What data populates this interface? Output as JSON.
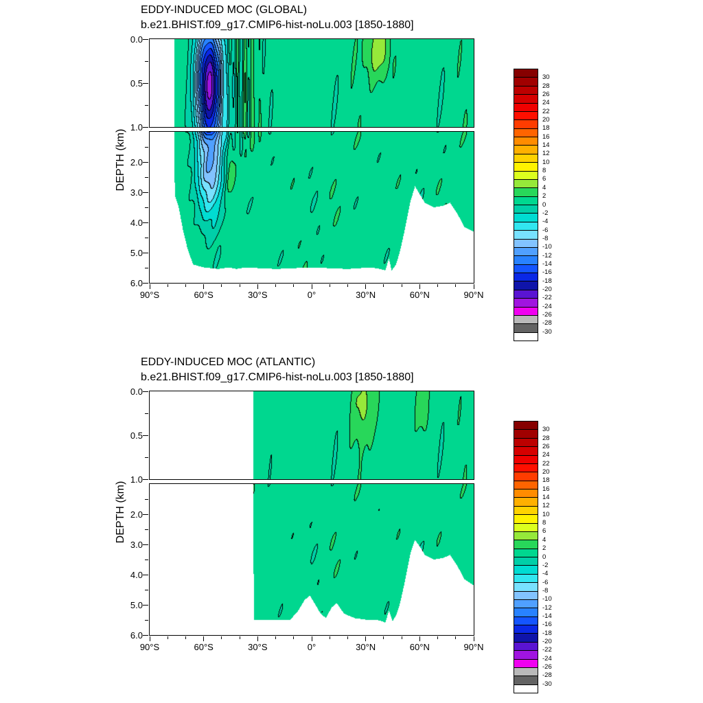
{
  "page": {
    "background_color": "#ffffff"
  },
  "colorbar": {
    "boundary_labels": [
      "30",
      "28",
      "26",
      "24",
      "22",
      "20",
      "18",
      "16",
      "14",
      "12",
      "10",
      "8",
      "6",
      "4",
      "2",
      "0",
      "-2",
      "-4",
      "-6",
      "-8",
      "-10",
      "-12",
      "-14",
      "-16",
      "-18",
      "-20",
      "-22",
      "-24",
      "-26",
      "-28",
      "-30"
    ],
    "colors_top_to_bottom": [
      "#860000",
      "#a00000",
      "#bc0000",
      "#d60000",
      "#f00000",
      "#ff0f00",
      "#ff3c00",
      "#ff6400",
      "#ff8c00",
      "#ffb000",
      "#ffd200",
      "#fff200",
      "#dcff1e",
      "#96e93a",
      "#28d75a",
      "#00d78f",
      "#00cfa8",
      "#00dcd2",
      "#32e6f0",
      "#78e1ff",
      "#82c3ff",
      "#50a0ff",
      "#2882ff",
      "#1455ff",
      "#0a28e6",
      "#0f14aa",
      "#5a14d2",
      "#a014e0",
      "#f000f0",
      "#b9b9b9",
      "#636363",
      "#ffffff"
    ]
  },
  "chart_data": [
    {
      "type": "heatmap",
      "region": "GLOBAL",
      "title": "EDDY-INDUCED MOC (GLOBAL)",
      "subtitle": "b.e21.BHIST.f09_g17.CMIP6-hist-noLu.003 [1850-1880]",
      "ylabel": "DEPTH (km)",
      "x_axis": {
        "range_deg_lat": [
          -90,
          90
        ],
        "tick_lats": [
          -90,
          -60,
          -30,
          0,
          30,
          60,
          90
        ],
        "tick_labels": [
          "90°S",
          "60°S",
          "30°S",
          "0°",
          "30°N",
          "60°N",
          "90°N"
        ]
      },
      "y_axis_split": {
        "upper_range_km": [
          0,
          1
        ],
        "lower_range_km": [
          1,
          6
        ],
        "upper_tick_depths": [
          0,
          0.5,
          1
        ],
        "upper_tick_labels": [
          "0.0",
          "0.5",
          "1.0"
        ],
        "lower_tick_depths": [
          2,
          3,
          4,
          5,
          6
        ],
        "lower_tick_labels": [
          "2.0",
          "3.0",
          "4.0",
          "5.0",
          "6.0"
        ]
      },
      "contour_levels": {
        "min": -30,
        "max": 30,
        "step": 2
      },
      "background_value": 1,
      "features": [
        {
          "name": "strong-negative-eddy-cell-60S-shallow",
          "lat": -57,
          "depth_km": 0.45,
          "amplitude": -18.2,
          "lat_sigma": 5,
          "depth_sigma": 0.45
        },
        {
          "name": "negative-eddy-cell-60S-deep",
          "lat": -56,
          "depth_km": 1.9,
          "amplitude": -11.5,
          "lat_sigma": 5.5,
          "depth_sigma": 1.25
        },
        {
          "name": "positive-spot-45S-2km",
          "lat": -45,
          "depth_km": 2.3,
          "amplitude": 3.6,
          "lat_sigma": 2.2,
          "depth_sigma": 0.55
        },
        {
          "name": "positive-cell-37N-surface",
          "lat": 37,
          "depth_km": 0.12,
          "amplitude": 4.6,
          "lat_sigma": 4.5,
          "depth_sigma": 0.26
        }
      ],
      "waves": [
        {
          "amp": 2.3,
          "freq": 1.5,
          "lat_center": -38,
          "lat_sigma": 7,
          "depth_center": 0.45,
          "depth_sigma": 0.8
        }
      ],
      "noise_amp": 1.2,
      "data_start_lat": -76.5,
      "ocean_floor_km": [
        [
          -90,
          -1
        ],
        [
          -76.6,
          -1
        ],
        [
          -76.2,
          3.1
        ],
        [
          -74,
          3.5
        ],
        [
          -71.5,
          4.3
        ],
        [
          -69,
          4.9
        ],
        [
          -66,
          5.4
        ],
        [
          -60,
          5.5
        ],
        [
          -52,
          5.55
        ],
        [
          -46,
          5.5
        ],
        [
          -42,
          5.55
        ],
        [
          -37,
          5.5
        ],
        [
          -20,
          5.55
        ],
        [
          0,
          5.5
        ],
        [
          20,
          5.55
        ],
        [
          33,
          5.5
        ],
        [
          38,
          5.55
        ],
        [
          41,
          5.6
        ],
        [
          43,
          5.2
        ],
        [
          44.5,
          5.6
        ],
        [
          47,
          5.4
        ],
        [
          49,
          5.0
        ],
        [
          52,
          4.2
        ],
        [
          55,
          3.3
        ],
        [
          57.5,
          2.8
        ],
        [
          60,
          3.05
        ],
        [
          63,
          3.35
        ],
        [
          68,
          3.5
        ],
        [
          73,
          3.45
        ],
        [
          77,
          3.35
        ],
        [
          81,
          3.7
        ],
        [
          85,
          4.15
        ],
        [
          90,
          4.3
        ]
      ]
    },
    {
      "type": "heatmap",
      "region": "ATLANTIC",
      "title": "EDDY-INDUCED MOC (ATLANTIC)",
      "subtitle": "b.e21.BHIST.f09_g17.CMIP6-hist-noLu.003 [1850-1880]",
      "ylabel": "DEPTH (km)",
      "x_axis": {
        "range_deg_lat": [
          -90,
          90
        ],
        "tick_lats": [
          -90,
          -60,
          -30,
          0,
          30,
          60,
          90
        ],
        "tick_labels": [
          "90°S",
          "60°S",
          "30°S",
          "0°",
          "30°N",
          "60°N",
          "90°N"
        ]
      },
      "y_axis_split": {
        "upper_range_km": [
          0,
          1
        ],
        "lower_range_km": [
          1,
          6
        ],
        "upper_tick_depths": [
          0,
          0.5,
          1
        ],
        "upper_tick_labels": [
          "0.0",
          "0.5",
          "1.0"
        ],
        "lower_tick_depths": [
          2,
          3,
          4,
          5,
          6
        ],
        "lower_tick_labels": [
          "2.0",
          "3.0",
          "4.0",
          "5.0",
          "6.0"
        ]
      },
      "contour_levels": {
        "min": -30,
        "max": 30,
        "step": 2
      },
      "background_value": 1,
      "features": [
        {
          "name": "positive-cell-30N-surface",
          "lat": 30,
          "depth_km": 0.15,
          "amplitude": 3.4,
          "lat_sigma": 5,
          "depth_sigma": 0.28
        },
        {
          "name": "positive-spot-62N-surface",
          "lat": 62,
          "depth_km": 0.12,
          "amplitude": 2.2,
          "lat_sigma": 2.5,
          "depth_sigma": 0.22
        }
      ],
      "waves": [],
      "noise_amp": 1.15,
      "data_start_lat": -32.4,
      "ocean_floor_km": [
        [
          -90,
          -1
        ],
        [
          -32.6,
          -1
        ],
        [
          -32.2,
          5.5
        ],
        [
          -12,
          5.5
        ],
        [
          -8,
          5.25
        ],
        [
          -4,
          4.85
        ],
        [
          -1,
          4.7
        ],
        [
          2,
          5.0
        ],
        [
          5,
          5.3
        ],
        [
          8,
          5.45
        ],
        [
          11,
          5.1
        ],
        [
          14,
          4.95
        ],
        [
          18,
          5.3
        ],
        [
          24,
          5.45
        ],
        [
          30,
          5.5
        ],
        [
          36,
          5.5
        ],
        [
          39,
          5.55
        ],
        [
          41,
          5.6
        ],
        [
          43,
          5.2
        ],
        [
          45,
          5.55
        ],
        [
          47,
          5.35
        ],
        [
          49,
          5.0
        ],
        [
          52,
          4.2
        ],
        [
          55,
          3.3
        ],
        [
          57.5,
          2.85
        ],
        [
          60,
          3.05
        ],
        [
          63,
          3.35
        ],
        [
          68,
          3.5
        ],
        [
          73,
          3.45
        ],
        [
          77,
          3.35
        ],
        [
          81,
          3.7
        ],
        [
          85,
          4.15
        ],
        [
          90,
          4.35
        ]
      ]
    }
  ]
}
